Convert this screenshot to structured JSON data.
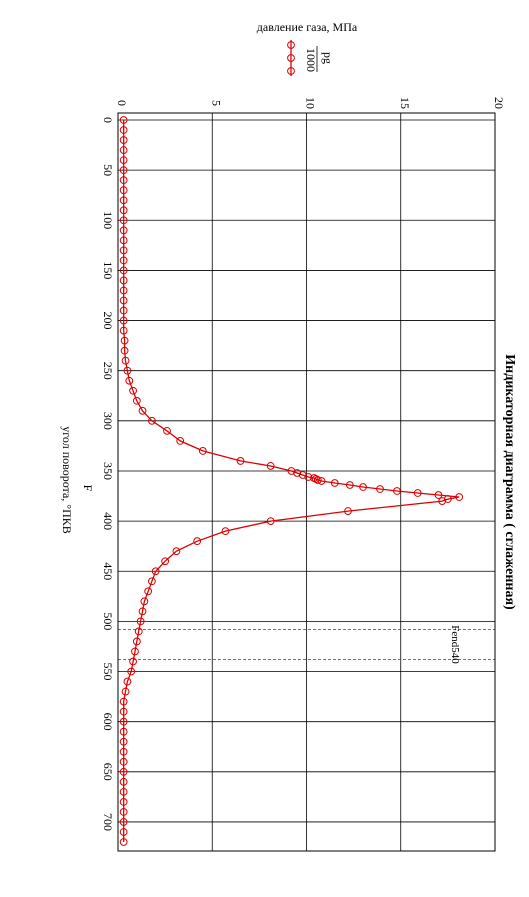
{
  "chart_data": {
    "type": "line",
    "title": "Индикаторная диаграмма ( сглаженная)",
    "xlabel_symbol": "F",
    "xlabel": "угол поворота, °ПКВ",
    "ylabel": "давление газа, МПа",
    "legend_name": "pg",
    "legend_divisor": "1000",
    "xlim": [
      0,
      720
    ],
    "ylim": [
      0,
      20
    ],
    "x_ticks": [
      0,
      50,
      100,
      150,
      200,
      250,
      300,
      350,
      400,
      450,
      500,
      550,
      600,
      650,
      700
    ],
    "y_ticks": [
      0,
      5,
      10,
      15,
      20
    ],
    "reference_label": "Fend540",
    "reference_lines": [
      508,
      538
    ],
    "series": [
      {
        "color": "#dd0000",
        "x": [
          0,
          10,
          20,
          30,
          40,
          50,
          60,
          70,
          80,
          90,
          100,
          110,
          120,
          130,
          140,
          150,
          160,
          170,
          180,
          190,
          200,
          210,
          220,
          230,
          240,
          250,
          260,
          270,
          280,
          290,
          300,
          310,
          320,
          330,
          340,
          345,
          350,
          352,
          354,
          356,
          357,
          358,
          359,
          360,
          362,
          364,
          366,
          368,
          370,
          372,
          374,
          376,
          378,
          380,
          390,
          400,
          410,
          420,
          430,
          440,
          450,
          460,
          470,
          480,
          490,
          500,
          510,
          520,
          530,
          540,
          550,
          560,
          570,
          580,
          590,
          600,
          610,
          620,
          630,
          640,
          650,
          660,
          670,
          680,
          690,
          700,
          710,
          720
        ],
        "y": [
          0.3,
          0.3,
          0.3,
          0.3,
          0.3,
          0.3,
          0.3,
          0.3,
          0.3,
          0.3,
          0.3,
          0.3,
          0.3,
          0.3,
          0.3,
          0.3,
          0.3,
          0.3,
          0.3,
          0.3,
          0.3,
          0.3,
          0.35,
          0.35,
          0.4,
          0.5,
          0.6,
          0.8,
          1.0,
          1.3,
          1.8,
          2.6,
          3.3,
          4.5,
          6.5,
          8.1,
          9.2,
          9.5,
          9.8,
          10.1,
          10.4,
          10.5,
          10.6,
          10.8,
          11.5,
          12.3,
          13.0,
          13.9,
          14.8,
          15.9,
          17.0,
          18.1,
          17.5,
          17.2,
          12.2,
          8.1,
          5.7,
          4.2,
          3.1,
          2.5,
          2.0,
          1.8,
          1.6,
          1.4,
          1.3,
          1.2,
          1.1,
          1.0,
          0.9,
          0.8,
          0.7,
          0.5,
          0.4,
          0.3,
          0.3,
          0.3,
          0.3,
          0.3,
          0.3,
          0.3,
          0.3,
          0.3,
          0.3,
          0.3,
          0.3,
          0.3,
          0.3,
          0.3
        ]
      }
    ]
  }
}
